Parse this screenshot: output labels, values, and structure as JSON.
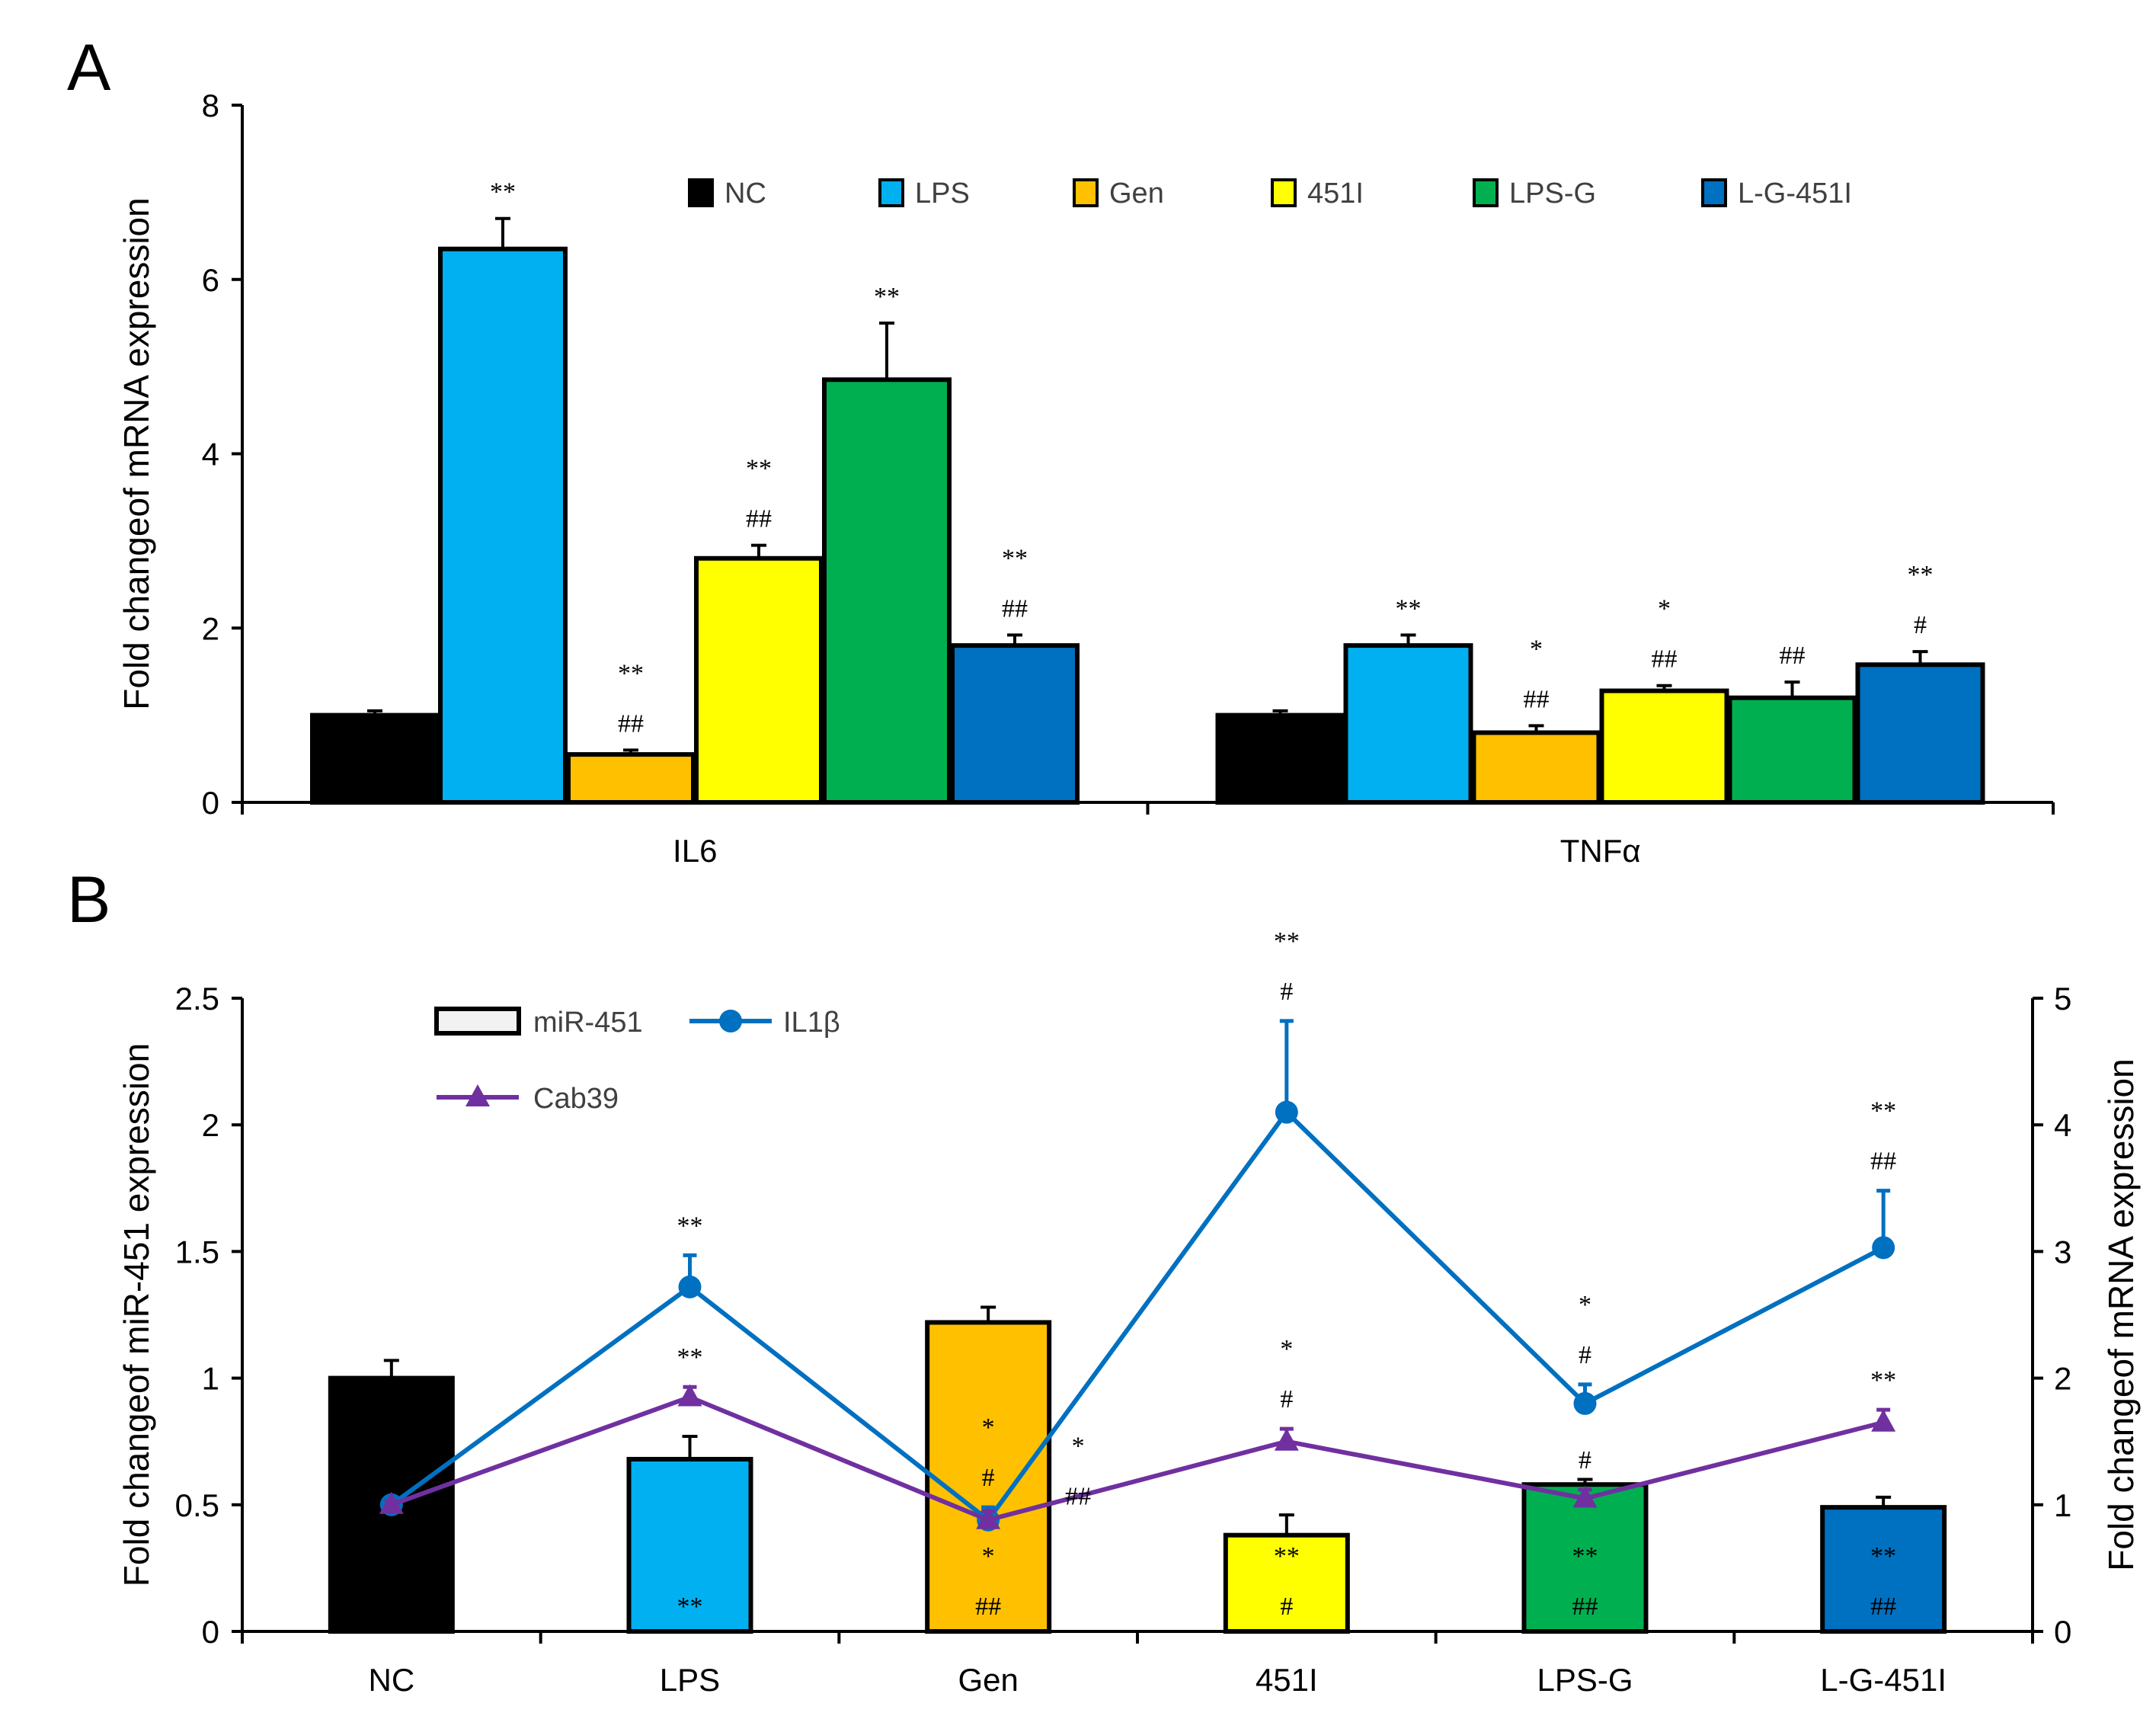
{
  "chart_data": [
    {
      "panel": "A",
      "type": "bar",
      "ylabel": "Fold changeof mRNA expression",
      "ylim": [
        0,
        8
      ],
      "yticks": [
        0,
        2,
        4,
        6,
        8
      ],
      "categories": [
        "IL6",
        "TNFα"
      ],
      "series": [
        {
          "name": "NC",
          "color": "#000000",
          "values": [
            1.0,
            1.0
          ],
          "errors": [
            0.05,
            0.05
          ],
          "annotations": [
            [
              "",
              ""
            ],
            [
              "",
              ""
            ]
          ]
        },
        {
          "name": "LPS",
          "color": "#00b0f0",
          "values": [
            6.35,
            1.8
          ],
          "errors": [
            0.35,
            0.12
          ],
          "annotations": [
            [
              "**",
              ""
            ],
            [
              "**",
              ""
            ]
          ]
        },
        {
          "name": "Gen",
          "color": "#ffc000",
          "values": [
            0.55,
            0.8
          ],
          "errors": [
            0.05,
            0.08
          ],
          "annotations": [
            [
              "**",
              "##"
            ],
            [
              "*",
              "##"
            ]
          ]
        },
        {
          "name": "451I",
          "color": "#ffff00",
          "values": [
            2.8,
            1.28
          ],
          "errors": [
            0.15,
            0.06
          ],
          "annotations": [
            [
              "**",
              "##"
            ],
            [
              "*",
              "##"
            ]
          ]
        },
        {
          "name": "LPS-G",
          "color": "#00b050",
          "values": [
            4.85,
            1.2
          ],
          "errors": [
            0.65,
            0.18
          ],
          "annotations": [
            [
              "**",
              ""
            ],
            [
              "##",
              ""
            ]
          ]
        },
        {
          "name": "L-G-451I",
          "color": "#0070c0",
          "values": [
            1.8,
            1.58
          ],
          "errors": [
            0.12,
            0.15
          ],
          "annotations": [
            [
              "**",
              "##"
            ],
            [
              "**",
              "#"
            ]
          ]
        }
      ]
    },
    {
      "panel": "B",
      "type": "bar+line",
      "ylabel": "Fold changeof miR-451 expression",
      "ylabel_right": "Fold changeof mRNA expression",
      "ylim": [
        0,
        2.5
      ],
      "yticks": [
        "0",
        "0.5",
        "1",
        "1.5",
        "2",
        "2.5"
      ],
      "ylim_right": [
        0,
        5
      ],
      "yticks_right": [
        "0",
        "1",
        "2",
        "3",
        "4",
        "5"
      ],
      "categories": [
        "NC",
        "LPS",
        "Gen",
        "451I",
        "LPS-G",
        "L-G-451I"
      ],
      "bar_colors": [
        "#000000",
        "#00b0f0",
        "#ffc000",
        "#ffff00",
        "#00b050",
        "#0070c0"
      ],
      "bars": {
        "name": "miR-451",
        "values": [
          1.0,
          0.68,
          1.22,
          0.38,
          0.58,
          0.49
        ],
        "errors": [
          0.07,
          0.09,
          0.06,
          0.08,
          0.02,
          0.04
        ],
        "annotations": [
          [],
          [
            "**"
          ],
          [
            "*",
            "##"
          ],
          [
            "**",
            "#"
          ],
          [
            "**",
            "##"
          ],
          [
            "**",
            "##"
          ]
        ]
      },
      "lines": [
        {
          "name": "IL1β",
          "color": "#0070c0",
          "marker": "circle",
          "axis": "right",
          "values": [
            1.0,
            2.72,
            0.88,
            4.1,
            1.8,
            3.03
          ],
          "errors": [
            0.05,
            0.25,
            0.1,
            0.72,
            0.15,
            0.45
          ],
          "annotations": [
            [],
            [
              "**"
            ],
            [
              "*",
              "#"
            ],
            [
              "**",
              "#"
            ],
            [
              "*",
              "#"
            ],
            [
              "**",
              "##"
            ]
          ]
        },
        {
          "name": "Cab39",
          "color": "#7030a0",
          "marker": "triangle",
          "axis": "right",
          "values": [
            1.0,
            1.85,
            0.88,
            1.5,
            1.05,
            1.65
          ],
          "errors": [
            0.03,
            0.08,
            0.07,
            0.1,
            0.07,
            0.1
          ],
          "annotations": [
            [],
            [
              "**"
            ],
            [
              "*",
              "##"
            ],
            [
              "*",
              "#"
            ],
            [
              "#"
            ],
            [
              "**"
            ]
          ]
        }
      ]
    }
  ]
}
